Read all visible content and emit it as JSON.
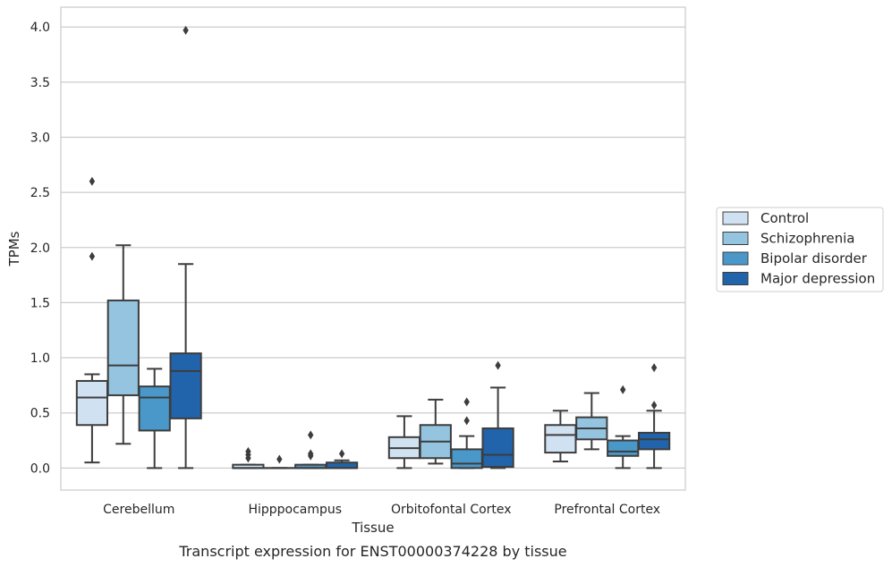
{
  "chart_data": {
    "type": "box",
    "xlabel": "Tissue",
    "ylabel": "TPMs",
    "caption": "Transcript expression for ENST00000374228 by tissue",
    "ylim": [
      -0.2,
      4.18
    ],
    "yticks": [
      "0.0",
      "0.5",
      "1.0",
      "1.5",
      "2.0",
      "2.5",
      "3.0",
      "3.5",
      "4.0"
    ],
    "ytick_values": [
      0,
      0.5,
      1.0,
      1.5,
      2.0,
      2.5,
      3.0,
      3.5,
      4.0
    ],
    "grid": "horizontal",
    "legend_position": "right",
    "categories": [
      "Cerebellum",
      "Hipppocampus",
      "Orbitofontal Cortex",
      "Prefrontal Cortex"
    ],
    "series": [
      {
        "name": "Control",
        "color": "#d0e1f2",
        "boxes": [
          {
            "whislo": 0.05,
            "q1": 0.39,
            "med": 0.64,
            "q3": 0.79,
            "whishi": 0.85,
            "fliers": [
              2.6,
              1.92
            ]
          },
          {
            "whislo": 0.0,
            "q1": 0.0,
            "med": 0.0,
            "q3": 0.03,
            "whishi": 0.03,
            "fliers": [
              0.15,
              0.12,
              0.09
            ]
          },
          {
            "whislo": 0.0,
            "q1": 0.09,
            "med": 0.18,
            "q3": 0.28,
            "whishi": 0.47,
            "fliers": []
          },
          {
            "whislo": 0.06,
            "q1": 0.14,
            "med": 0.3,
            "q3": 0.39,
            "whishi": 0.52,
            "fliers": []
          }
        ]
      },
      {
        "name": "Schizophrenia",
        "color": "#94c4df",
        "boxes": [
          {
            "whislo": 0.22,
            "q1": 0.66,
            "med": 0.93,
            "q3": 1.52,
            "whishi": 2.02,
            "fliers": []
          },
          {
            "whislo": 0.0,
            "q1": 0.0,
            "med": 0.0,
            "q3": 0.0,
            "whishi": 0.0,
            "fliers": [
              0.08
            ]
          },
          {
            "whislo": 0.04,
            "q1": 0.09,
            "med": 0.24,
            "q3": 0.39,
            "whishi": 0.62,
            "fliers": []
          },
          {
            "whislo": 0.17,
            "q1": 0.26,
            "med": 0.36,
            "q3": 0.46,
            "whishi": 0.68,
            "fliers": []
          }
        ]
      },
      {
        "name": "Bipolar disorder",
        "color": "#4a98c9",
        "boxes": [
          {
            "whislo": 0.0,
            "q1": 0.34,
            "med": 0.64,
            "q3": 0.74,
            "whishi": 0.9,
            "fliers": []
          },
          {
            "whislo": 0.0,
            "q1": 0.0,
            "med": 0.0,
            "q3": 0.03,
            "whishi": 0.03,
            "fliers": [
              0.3,
              0.13,
              0.11
            ]
          },
          {
            "whislo": 0.0,
            "q1": 0.0,
            "med": 0.04,
            "q3": 0.17,
            "whishi": 0.29,
            "fliers": [
              0.6,
              0.43
            ]
          },
          {
            "whislo": 0.0,
            "q1": 0.11,
            "med": 0.15,
            "q3": 0.25,
            "whishi": 0.29,
            "fliers": [
              0.71
            ]
          }
        ]
      },
      {
        "name": "Major depression",
        "color": "#2164ab",
        "boxes": [
          {
            "whislo": 0.0,
            "q1": 0.45,
            "med": 0.88,
            "q3": 1.04,
            "whishi": 1.85,
            "fliers": [
              3.97
            ]
          },
          {
            "whislo": 0.0,
            "q1": 0.0,
            "med": 0.0,
            "q3": 0.05,
            "whishi": 0.07,
            "fliers": [
              0.13
            ]
          },
          {
            "whislo": 0.0,
            "q1": 0.01,
            "med": 0.12,
            "q3": 0.36,
            "whishi": 0.73,
            "fliers": [
              0.93
            ]
          },
          {
            "whislo": 0.0,
            "q1": 0.17,
            "med": 0.26,
            "q3": 0.32,
            "whishi": 0.52,
            "fliers": [
              0.91,
              0.57
            ]
          }
        ]
      }
    ]
  }
}
